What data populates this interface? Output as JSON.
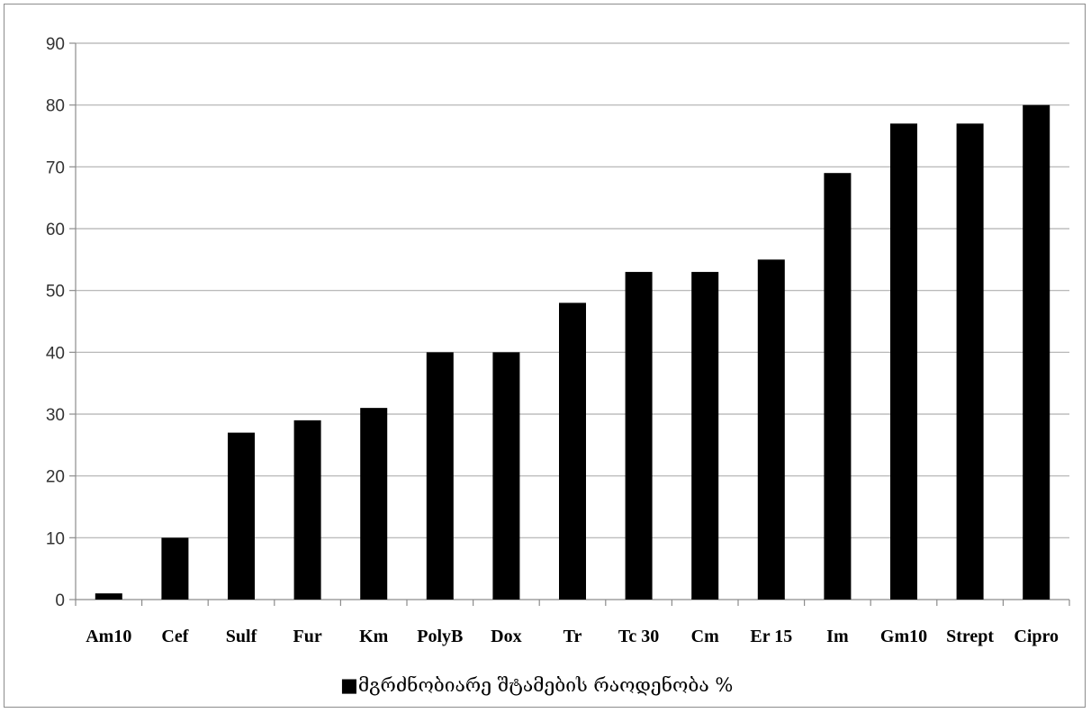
{
  "chart_data": {
    "type": "bar",
    "categories": [
      "Am10",
      "Cef",
      "Sulf",
      "Fur",
      "Km",
      "PolyB",
      "Dox",
      "Tr",
      "Tc 30",
      "Cm",
      "Er 15",
      "Im",
      "Gm10",
      "Strept",
      "Cipro"
    ],
    "series": [
      {
        "name": "■მგრძნობიარე შტამების რაოდენობა %",
        "values": [
          1,
          10,
          27,
          29,
          31,
          40,
          40,
          48,
          53,
          53,
          55,
          69,
          77,
          77,
          80
        ]
      }
    ],
    "ylim": [
      0,
      90
    ],
    "yticks": [
      0,
      10,
      20,
      30,
      40,
      50,
      60,
      70,
      80,
      90
    ],
    "grid": true,
    "legend": "bottom",
    "bar_color": "#000000",
    "grid_color": "#b0b0b0"
  }
}
